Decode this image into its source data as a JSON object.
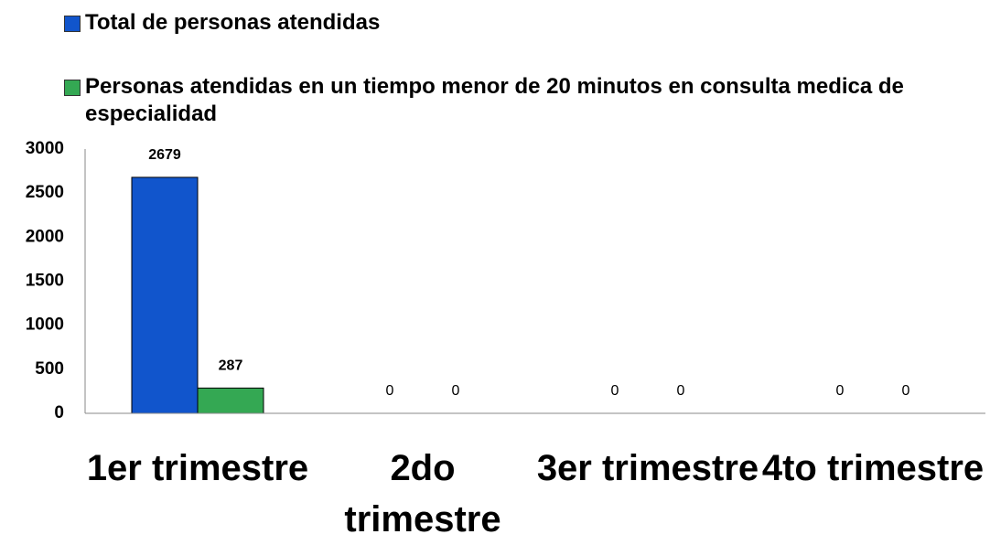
{
  "chart_data": {
    "type": "bar",
    "categories": [
      "1er trimestre",
      "2do trimestre",
      "3er trimestre",
      "4to trimestre"
    ],
    "series": [
      {
        "name": "Total de personas atendidas",
        "color": "#1155cc",
        "values": [
          2679,
          0,
          0,
          0
        ]
      },
      {
        "name": "Personas atendidas en un tiempo menor de 20 minutos  en consulta medica de especialidad",
        "color": "#34a853",
        "values": [
          287,
          0,
          0,
          0
        ]
      }
    ],
    "ylim": [
      0,
      3000
    ],
    "yticks": [
      0,
      500,
      1000,
      1500,
      2000,
      2500,
      3000
    ],
    "grid": false,
    "legend": "top"
  }
}
